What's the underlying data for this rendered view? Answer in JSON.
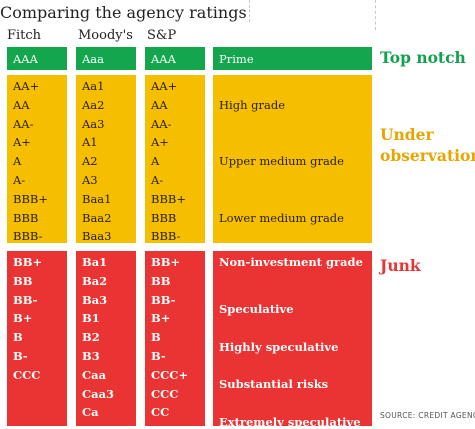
{
  "title": "Comparing the agency ratings",
  "columns": [
    "Fitch",
    "Moody's",
    "S&P",
    ""
  ],
  "source": "SOURCE: CREDIT AGENCIES",
  "colors": {
    "top": "#13a64c",
    "under": "#f5bf00",
    "junk": "#ea3333",
    "top_label": "#14a050",
    "under_label": "#e7a500",
    "junk_label": "#e53535"
  },
  "chart_data": {
    "type": "table",
    "title": "Comparing the agency ratings",
    "columns": [
      "Fitch",
      "Moody's",
      "S&P",
      ""
    ],
    "groups": [
      {
        "category": "Top notch",
        "color": "green",
        "fitch": [
          "AAA"
        ],
        "moodys": [
          "Aaa"
        ],
        "sp": [
          "AAA"
        ],
        "descriptions": [
          "Prime"
        ]
      },
      {
        "category": "Under observation",
        "color": "yellow",
        "fitch": [
          "AA+",
          "AA",
          "AA-",
          "A+",
          "A",
          "A-",
          "BBB+",
          "BBB",
          "BBB-"
        ],
        "moodys": [
          "Aa1",
          "Aa2",
          "Aa3",
          "A1",
          "A2",
          "A3",
          "Baa1",
          "Baa2",
          "Baa3"
        ],
        "sp": [
          "AA+",
          "AA",
          "AA-",
          "A+",
          "A",
          "A-",
          "BBB+",
          "BBB",
          "BBB-"
        ],
        "descriptions": [
          "High grade",
          "Upper medium grade",
          "Lower medium grade"
        ]
      },
      {
        "category": "Junk",
        "color": "red",
        "fitch": [
          "BB+",
          "BB",
          "BB-",
          "B+",
          "B",
          "B-",
          "CCC"
        ],
        "moodys": [
          "Ba1",
          "Ba2",
          "Ba3",
          "B1",
          "B2",
          "B3",
          "Caa",
          "Caa3",
          "Ca"
        ],
        "sp": [
          "BB+",
          "BB",
          "BB-",
          "B+",
          "B",
          "B-",
          "CCC+",
          "CCC",
          "CC"
        ],
        "descriptions": [
          "Non-investment grade",
          "Speculative",
          "Highly speculative",
          "Substantial risks",
          "Extremely speculative"
        ]
      }
    ]
  }
}
